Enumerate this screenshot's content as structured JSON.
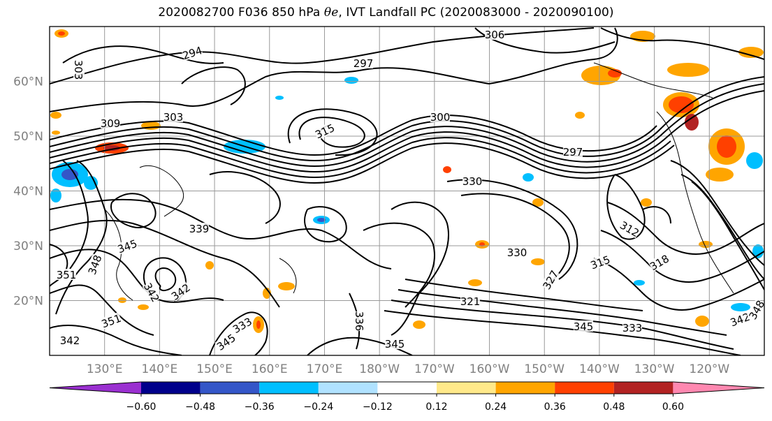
{
  "title": {
    "prefix": "2020082700 F036 850 hPa ",
    "symbol": "θe",
    "suffix": ", IVT Landfall PC (2020083000 - 2020090100)"
  },
  "map": {
    "lat_labels": [
      "60°N",
      "50°N",
      "40°N",
      "30°N",
      "20°N"
    ],
    "lon_labels": [
      "130°E",
      "140°E",
      "150°E",
      "160°E",
      "170°E",
      "180°W",
      "170°W",
      "160°W",
      "150°W",
      "140°W",
      "130°W",
      "120°W"
    ],
    "contour_labels": [
      "294",
      "297",
      "303",
      "306",
      "309",
      "303",
      "315",
      "300",
      "297",
      "330",
      "312",
      "318",
      "315",
      "327",
      "330",
      "339",
      "345",
      "348",
      "351",
      "342",
      "342",
      "345",
      "351",
      "342",
      "345",
      "333",
      "321",
      "345",
      "333",
      "342",
      "348",
      "336"
    ]
  },
  "colorbar": {
    "colors": [
      "#9a30d0",
      "#00008b",
      "#3456c8",
      "#00bfff",
      "#b0e2ff",
      "#ffffff",
      "#ffe98a",
      "#ffa500",
      "#ff4000",
      "#b22222",
      "#ff88b0"
    ],
    "tick_labels": [
      "−0.60",
      "−0.48",
      "−0.36",
      "−0.24",
      "−0.12",
      "0.12",
      "0.24",
      "0.36",
      "0.48",
      "0.60"
    ]
  }
}
